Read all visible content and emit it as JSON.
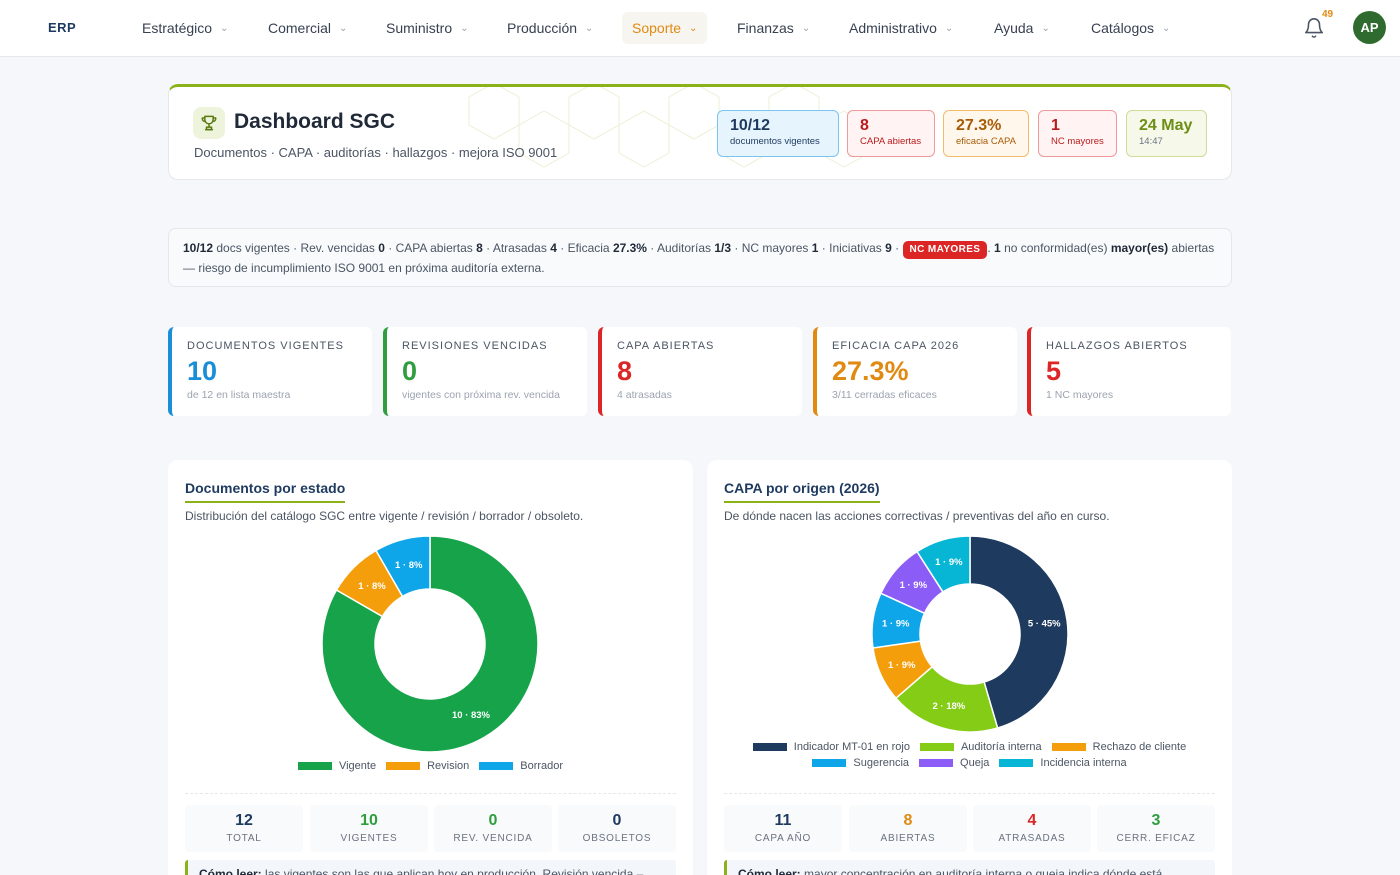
{
  "nav": {
    "brand": "ERP",
    "items": [
      {
        "label": "Estratégico"
      },
      {
        "label": "Comercial"
      },
      {
        "label": "Suministro"
      },
      {
        "label": "Producción"
      },
      {
        "label": "Soporte"
      },
      {
        "label": "Finanzas"
      },
      {
        "label": "Administrativo"
      },
      {
        "label": "Ayuda"
      },
      {
        "label": "Catálogos"
      }
    ],
    "active": "Soporte",
    "notifications": "49",
    "avatar": "AP",
    "icons": {
      "bell": "bell-icon",
      "chevron": "chevron-down-icon"
    }
  },
  "header": {
    "title": "Dashboard SGC",
    "subtitle": "Documentos · CAPA · auditorías · hallazgos · mejora ISO 9001",
    "icon": "trophy-icon",
    "chips": [
      {
        "value": "10/12",
        "label": "documentos vigentes"
      },
      {
        "value": "8",
        "label": "CAPA abiertas"
      },
      {
        "value": "27.3%",
        "label": "eficacia CAPA"
      },
      {
        "value": "1",
        "label": "NC mayores"
      },
      {
        "value": "24 May",
        "label": "14:47"
      }
    ]
  },
  "info": {
    "docs": "10/12",
    "docs_label": "docs vigentes",
    "rev_label": "Rev. vencidas",
    "rev": "0",
    "capa_label": "CAPA abiertas",
    "capa": "8",
    "late_label": "Atrasadas",
    "late": "4",
    "eff_label": "Eficacia",
    "eff": "27.3%",
    "aud_label": "Auditorías",
    "aud": "1/3",
    "nc_label": "NC mayores",
    "nc": "1",
    "init_label": "Iniciativas",
    "init": "9",
    "tag": "NC MAYORES",
    "alert_count": "1",
    "alert_pre": "no conformidad(es)",
    "alert_bold": "mayor(es)",
    "alert_post": "abiertas — riesgo de incumplimiento ISO 9001 en próxima auditoría externa."
  },
  "stats": [
    {
      "label": "DOCUMENTOS VIGENTES",
      "value": "10",
      "sub": "de 12 en lista maestra",
      "color": "#1a8fd8"
    },
    {
      "label": "REVISIONES VENCIDAS",
      "value": "0",
      "sub": "vigentes con próxima rev. vencida",
      "color": "#2e9e3e"
    },
    {
      "label": "CAPA ABIERTAS",
      "value": "8",
      "sub": "4 atrasadas",
      "color": "#dc2626"
    },
    {
      "label": "EFICACIA CAPA 2026",
      "value": "27.3%",
      "sub": "3/11 cerradas eficaces",
      "color": "#e08a12"
    },
    {
      "label": "HALLAZGOS ABIERTOS",
      "value": "5",
      "sub": "1 NC mayores",
      "color": "#dc2626"
    }
  ],
  "panels": {
    "docs": {
      "title": "Documentos por estado",
      "subtitle": "Distribución del catálogo SGC entre vigente / revisión / borrador / obsoleto.",
      "minis": [
        {
          "value": "12",
          "label": "TOTAL",
          "color": "#1e3a5f"
        },
        {
          "value": "10",
          "label": "VIGENTES",
          "color": "#2e9e3e"
        },
        {
          "value": "0",
          "label": "REV. VENCIDA",
          "color": "#2e9e3e"
        },
        {
          "value": "0",
          "label": "OBSOLETOS",
          "color": "#1e3a5f"
        }
      ],
      "howto_bold": "Cómo leer:",
      "howto_text": "las vigentes son las que aplican hoy en producción. Revisión vencida –"
    },
    "capa": {
      "title": "CAPA por origen (2026)",
      "subtitle": "De dónde nacen las acciones correctivas / preventivas del año en curso.",
      "minis": [
        {
          "value": "11",
          "label": "CAPA AÑO",
          "color": "#1e3a5f"
        },
        {
          "value": "8",
          "label": "ABIERTAS",
          "color": "#e08a12"
        },
        {
          "value": "4",
          "label": "ATRASADAS",
          "color": "#dc2626"
        },
        {
          "value": "3",
          "label": "CERR. EFICAZ",
          "color": "#2e9e3e"
        }
      ],
      "howto_bold": "Cómo leer:",
      "howto_text": "mayor concentración en auditoría interna o queja indica dónde está"
    }
  },
  "chart_data": [
    {
      "type": "pie",
      "title": "Documentos por estado",
      "categories": [
        "Vigente",
        "Revision",
        "Borrador"
      ],
      "values": [
        10,
        1,
        1
      ],
      "percent_labels": [
        "10 · 83%",
        "1 · 8%",
        "1 · 8%"
      ],
      "colors": [
        "#16a34a",
        "#f59e0b",
        "#0ea5e9"
      ],
      "legend": "bottom"
    },
    {
      "type": "pie",
      "title": "CAPA por origen (2026)",
      "categories": [
        "Indicador MT-01 en rojo",
        "Auditoría interna",
        "Rechazo de cliente",
        "Sugerencia",
        "Queja",
        "Incidencia interna"
      ],
      "values": [
        5,
        2,
        1,
        1,
        1,
        1
      ],
      "percent_labels": [
        "5 · 45%",
        "2 · 18%",
        "1 · 9%",
        "1 · 9%",
        "1 · 9%",
        "1 · 9%"
      ],
      "colors": [
        "#1e3a5f",
        "#84cc16",
        "#f59e0b",
        "#0ea5e9",
        "#8b5cf6",
        "#06b6d4"
      ],
      "legend": "bottom"
    }
  ]
}
